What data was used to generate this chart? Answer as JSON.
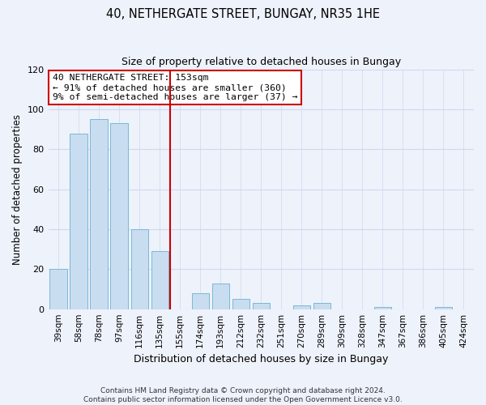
{
  "title_line1": "40, NETHERGATE STREET, BUNGAY, NR35 1HE",
  "title_line2": "Size of property relative to detached houses in Bungay",
  "xlabel": "Distribution of detached houses by size in Bungay",
  "ylabel": "Number of detached properties",
  "bar_labels": [
    "39sqm",
    "58sqm",
    "78sqm",
    "97sqm",
    "116sqm",
    "135sqm",
    "155sqm",
    "174sqm",
    "193sqm",
    "212sqm",
    "232sqm",
    "251sqm",
    "270sqm",
    "289sqm",
    "309sqm",
    "328sqm",
    "347sqm",
    "367sqm",
    "386sqm",
    "405sqm",
    "424sqm"
  ],
  "bar_values": [
    20,
    88,
    95,
    93,
    40,
    29,
    0,
    8,
    13,
    5,
    3,
    0,
    2,
    3,
    0,
    0,
    1,
    0,
    0,
    1,
    0
  ],
  "bar_color": "#c9ddf0",
  "bar_edge_color": "#7bb8d4",
  "reference_line_color": "#cc0000",
  "annotation_title": "40 NETHERGATE STREET: 153sqm",
  "annotation_line1": "← 91% of detached houses are smaller (360)",
  "annotation_line2": "9% of semi-detached houses are larger (37) →",
  "annotation_box_edge": "#cc0000",
  "ylim": [
    0,
    120
  ],
  "yticks": [
    0,
    20,
    40,
    60,
    80,
    100,
    120
  ],
  "footer_line1": "Contains HM Land Registry data © Crown copyright and database right 2024.",
  "footer_line2": "Contains public sector information licensed under the Open Government Licence v3.0.",
  "bg_color": "#eef2fb",
  "grid_color": "#d0d8ee",
  "title_fontsize": 10.5,
  "subtitle_fontsize": 9,
  "xlabel_fontsize": 9,
  "ylabel_fontsize": 8.5,
  "tick_fontsize": 7.5,
  "annot_fontsize": 8.2,
  "footer_fontsize": 6.5
}
